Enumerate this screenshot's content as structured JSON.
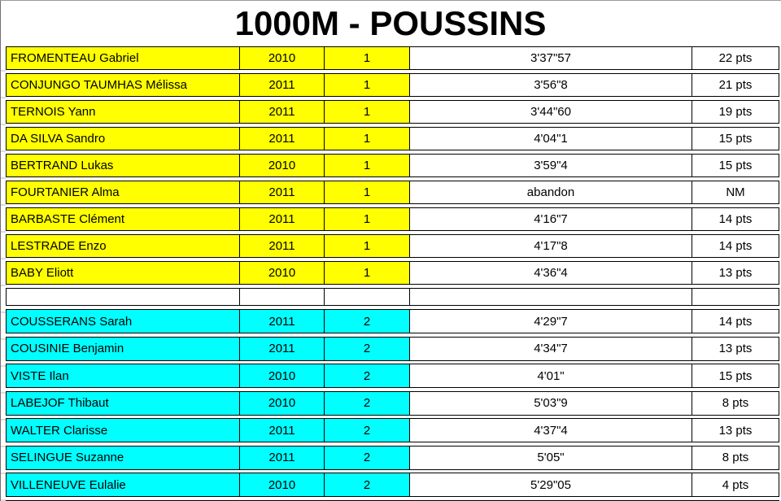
{
  "title": "1000M - POUSSINS",
  "colors": {
    "heat1": "#FFFF00",
    "heat2": "#00FFFF",
    "border": "#000000"
  },
  "table": {
    "rows": [
      {
        "name": "FROMENTEAU Gabriel",
        "year": "2010",
        "heat": "1",
        "time": "3'37\"57",
        "points": "22 pts"
      },
      {
        "name": "CONJUNGO TAUMHAS Mélissa",
        "year": "2011",
        "heat": "1",
        "time": "3'56\"8",
        "points": "21 pts"
      },
      {
        "name": "TERNOIS Yann",
        "year": "2011",
        "heat": "1",
        "time": "3'44\"60",
        "points": "19 pts"
      },
      {
        "name": "DA SILVA Sandro",
        "year": "2011",
        "heat": "1",
        "time": "4'04\"1",
        "points": "15 pts"
      },
      {
        "name": "BERTRAND Lukas",
        "year": "2010",
        "heat": "1",
        "time": "3'59\"4",
        "points": "15 pts"
      },
      {
        "name": "FOURTANIER Alma",
        "year": "2011",
        "heat": "1",
        "time": "abandon",
        "points": "NM"
      },
      {
        "name": "BARBASTE Clément",
        "year": "2011",
        "heat": "1",
        "time": "4'16\"7",
        "points": "14 pts"
      },
      {
        "name": "LESTRADE Enzo",
        "year": "2011",
        "heat": "1",
        "time": "4'17\"8",
        "points": "14 pts"
      },
      {
        "name": "BABY Eliott",
        "year": "2010",
        "heat": "1",
        "time": "4'36\"4",
        "points": "13 pts"
      },
      {
        "type": "empty"
      },
      {
        "name": "COUSSERANS Sarah",
        "year": "2011",
        "heat": "2",
        "time": "4'29\"7",
        "points": "14 pts"
      },
      {
        "name": "COUSINIE Benjamin",
        "year": "2011",
        "heat": "2",
        "time": "4'34\"7",
        "points": "13 pts"
      },
      {
        "name": "VISTE Ilan",
        "year": "2010",
        "heat": "2",
        "time": "4'01\"",
        "points": "15 pts"
      },
      {
        "name": "LABEJOF Thibaut",
        "year": "2010",
        "heat": "2",
        "time": "5'03\"9",
        "points": "8 pts"
      },
      {
        "name": "WALTER Clarisse",
        "year": "2011",
        "heat": "2",
        "time": "4'37\"4",
        "points": "13 pts"
      },
      {
        "name": "SELINGUE Suzanne",
        "year": "2011",
        "heat": "2",
        "time": "5'05\"",
        "points": "8 pts"
      },
      {
        "name": "VILLENEUVE Eulalie",
        "year": "2010",
        "heat": "2",
        "time": "5'29\"05",
        "points": "4 pts"
      },
      {
        "type": "cut"
      }
    ]
  }
}
